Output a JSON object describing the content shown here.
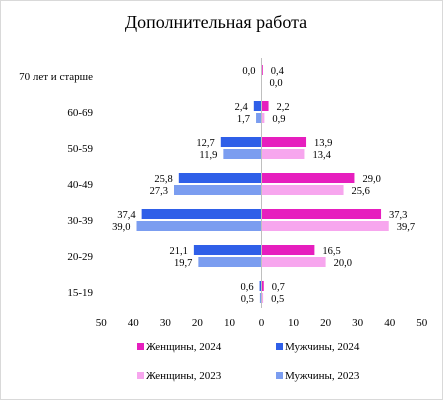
{
  "chart_data": {
    "type": "bar",
    "orientation": "horizontal-butterfly",
    "title": "Дополнительная работа",
    "categories": [
      "70 лет и старше",
      "60-69",
      "50-59",
      "40-49",
      "30-39",
      "20-29",
      "15-19"
    ],
    "series": [
      {
        "name": "Женщины,  2024",
        "side": "right",
        "color": "#e61ebe",
        "values": [
          0.4,
          2.2,
          13.9,
          29.0,
          37.3,
          16.5,
          0.7
        ],
        "labels": [
          "0,4",
          "2,2",
          "13,9",
          "29,0",
          "37,3",
          "16,5",
          "0,7"
        ]
      },
      {
        "name": "Женщины,  2023",
        "side": "right",
        "color": "#f7a6ee",
        "values": [
          0.0,
          0.9,
          13.4,
          25.6,
          39.7,
          20.0,
          0.5
        ],
        "labels": [
          "0,0",
          "0,9",
          "13,4",
          "25,6",
          "39,7",
          "20,0",
          "0,5"
        ]
      },
      {
        "name": "Мужчины, 2024",
        "side": "left",
        "color": "#2f5fe8",
        "values": [
          0.0,
          2.4,
          12.7,
          25.8,
          37.4,
          21.1,
          0.6
        ],
        "labels": [
          "0,0",
          "2,4",
          "12,7",
          "25,8",
          "37,4",
          "21,1",
          "0,6"
        ]
      },
      {
        "name": "Мужчины, 2023",
        "side": "left",
        "color": "#7b9df0",
        "values": [
          0.0,
          1.7,
          11.9,
          27.3,
          39.0,
          19.7,
          0.5
        ],
        "labels": [
          "",
          "1,7",
          "11,9",
          "27,3",
          "39,0",
          "19,7",
          "0,5"
        ]
      }
    ],
    "x_ticks": [
      "50",
      "40",
      "30",
      "20",
      "10",
      "0",
      "10",
      "20",
      "30",
      "40",
      "50"
    ],
    "xlim": [
      -50,
      50
    ],
    "grid": false,
    "legend": {
      "placement": "bottom",
      "order": [
        "Женщины,  2024",
        "Мужчины, 2024",
        "Женщины,  2023",
        "Мужчины, 2023"
      ]
    }
  }
}
